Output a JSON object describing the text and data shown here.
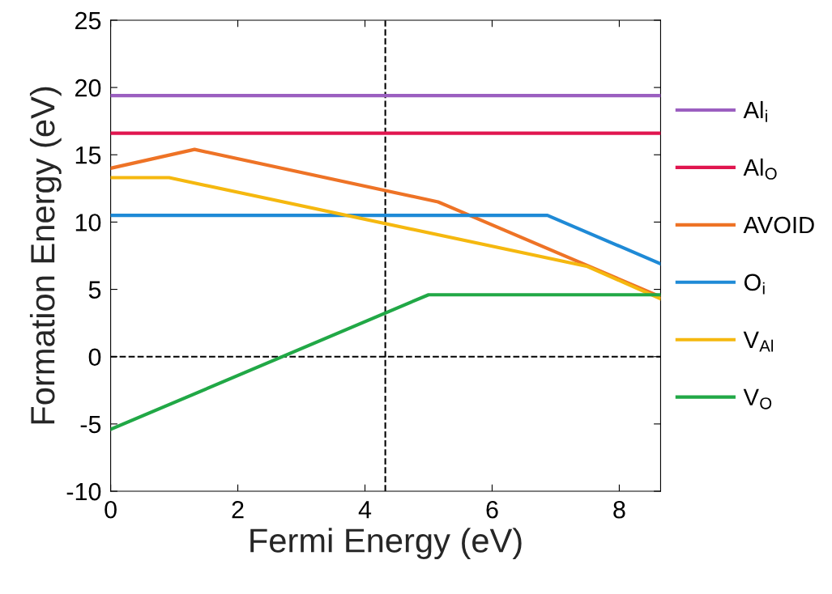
{
  "chart_data": {
    "type": "line",
    "xlabel": "Fermi Energy (eV)",
    "ylabel": "Formation Energy (eV)",
    "xlim": [
      0,
      8.65
    ],
    "ylim": [
      -10,
      25
    ],
    "xticks": [
      0,
      2,
      4,
      6,
      8
    ],
    "yticks": [
      -10,
      -5,
      0,
      5,
      10,
      15,
      20,
      25
    ],
    "grid": false,
    "legend": "right",
    "line_style": "solid",
    "marker": "none",
    "series": [
      {
        "name": "Al$_{i}$",
        "color": "#9b5fc0",
        "x": [
          0,
          8.65
        ],
        "values": [
          19.4,
          19.4
        ]
      },
      {
        "name": "Al$_{O}$",
        "color": "#e0154f",
        "x": [
          0,
          8.65
        ],
        "values": [
          16.6,
          16.6
        ]
      },
      {
        "name": "AVOID",
        "color": "#ee7326",
        "x": [
          0,
          1.32,
          5.15,
          8.65
        ],
        "values": [
          14.0,
          15.4,
          11.5,
          4.45
        ]
      },
      {
        "name": "O$_{i}$",
        "color": "#1f8ad6",
        "x": [
          0,
          6.87,
          8.65
        ],
        "values": [
          10.5,
          10.5,
          6.9
        ]
      },
      {
        "name": "V$_{Al}$",
        "color": "#f5b80f",
        "x": [
          0,
          0.92,
          7.5,
          8.65
        ],
        "values": [
          13.3,
          13.3,
          6.7,
          4.3
        ]
      },
      {
        "name": "V$_{O}$",
        "color": "#21a846",
        "x": [
          0,
          5.0,
          8.65
        ],
        "values": [
          -5.4,
          4.6,
          4.6
        ]
      }
    ],
    "ref_lines": [
      {
        "axis": "x",
        "value": 4.32,
        "color": "#000000",
        "line_style": "dashed"
      },
      {
        "axis": "y",
        "value": 0,
        "color": "#000000",
        "line_style": "dashed"
      }
    ]
  }
}
